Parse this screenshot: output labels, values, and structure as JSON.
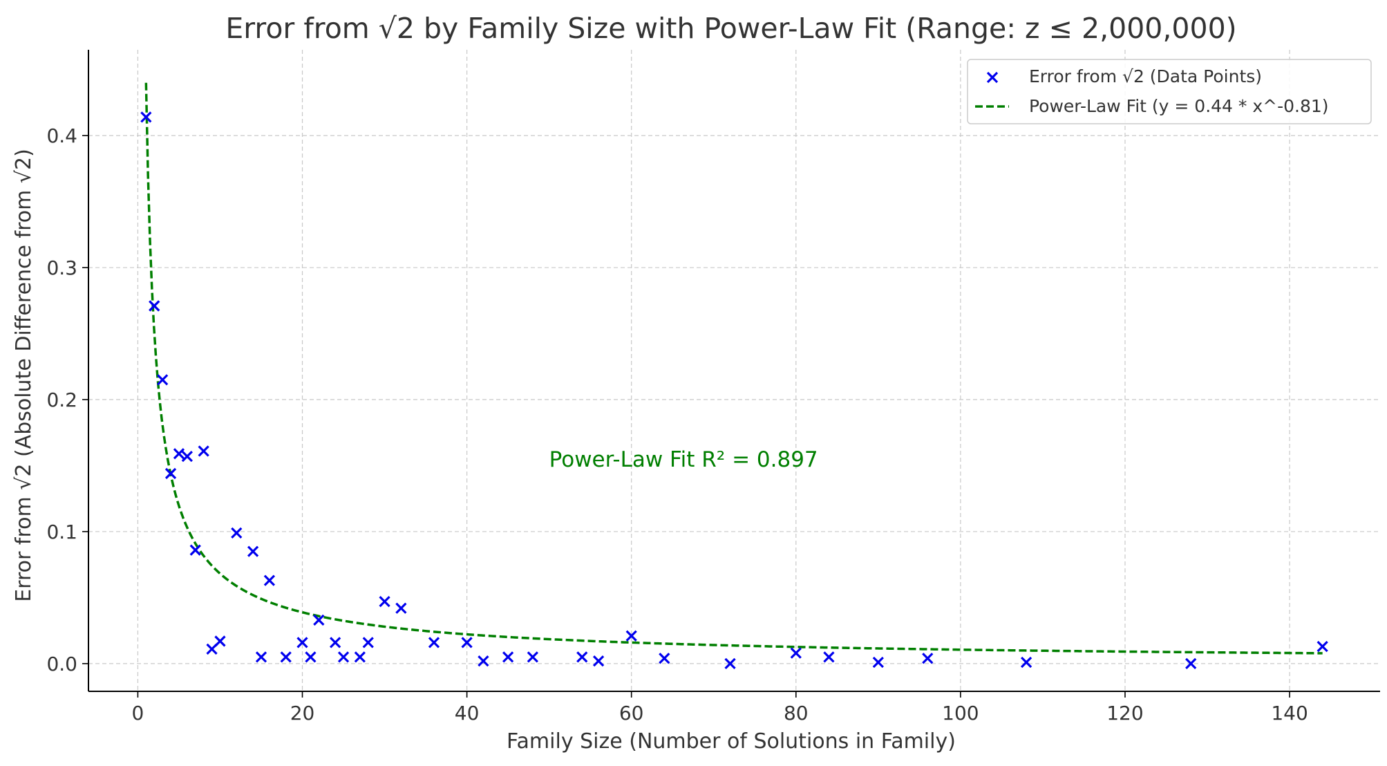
{
  "chart_data": {
    "type": "scatter",
    "title": "Error from √2 by Family Size with Power-Law Fit (Range: z ≤ 2,000,000)",
    "xlabel": "Family Size (Number of Solutions in Family)",
    "ylabel": "Error from √2 (Absolute Difference from √2)",
    "xlim": [
      -6,
      151
    ],
    "ylim": [
      -0.021,
      0.465
    ],
    "xticks": [
      0,
      20,
      40,
      60,
      80,
      100,
      120,
      140
    ],
    "xtick_labels": [
      "0",
      "20",
      "40",
      "60",
      "80",
      "100",
      "120",
      "140"
    ],
    "yticks": [
      0.0,
      0.1,
      0.2,
      0.3,
      0.4
    ],
    "ytick_labels": [
      "0.0",
      "0.1",
      "0.2",
      "0.3",
      "0.4"
    ],
    "grid": true,
    "legend_position": "top-right",
    "series": [
      {
        "name": "Error from √2 (Data Points)",
        "kind": "scatter",
        "marker": "x",
        "color": "#0000ee",
        "x": [
          1,
          2,
          3,
          4,
          5,
          6,
          7,
          8,
          9,
          10,
          12,
          14,
          15,
          16,
          18,
          20,
          21,
          22,
          24,
          25,
          27,
          28,
          30,
          32,
          36,
          40,
          42,
          45,
          48,
          54,
          56,
          60,
          64,
          72,
          80,
          84,
          90,
          96,
          108,
          128,
          144
        ],
        "y": [
          0.414,
          0.271,
          0.215,
          0.144,
          0.159,
          0.157,
          0.086,
          0.161,
          0.011,
          0.017,
          0.099,
          0.085,
          0.005,
          0.063,
          0.005,
          0.016,
          0.005,
          0.033,
          0.016,
          0.005,
          0.005,
          0.016,
          0.047,
          0.042,
          0.016,
          0.016,
          0.002,
          0.005,
          0.005,
          0.005,
          0.002,
          0.021,
          0.004,
          0.0,
          0.008,
          0.005,
          0.001,
          0.004,
          0.001,
          0.0,
          0.013
        ]
      },
      {
        "name": "Power-Law Fit (y = 0.44 * x^-0.81)",
        "kind": "line",
        "style": "dashed",
        "color": "#007f00",
        "function": {
          "form": "a*x^b",
          "a": 0.44,
          "b": -0.81,
          "x_range": [
            1,
            144
          ]
        }
      }
    ],
    "annotations": [
      {
        "text": "Power-Law Fit R² = 0.897",
        "x": 50,
        "y": 0.155,
        "color": "#007f00"
      }
    ]
  }
}
